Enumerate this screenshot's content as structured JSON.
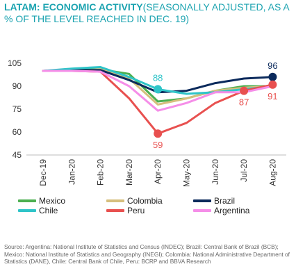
{
  "title": {
    "bold": "LATAM: ECONOMIC ACTIVITY",
    "normal": "(SEASONALLY ADJUSTED, AS A % OF THE LEVEL REACHED IN DEC. 19)"
  },
  "source": "Source: Argentina: National Institute of Statistics and Census (INDEC); Brazil: Central Bank of Brazil (BCB); Mexico: National Institute of Statistics and Geography (INEGI); Colombia: National Administrative Department of Statistics (DANE), Chile: Central Bank of Chile, Peru: BCRP and BBVA Research",
  "chart_data": {
    "type": "line",
    "categories": [
      "Dec-19",
      "Jan-20",
      "Feb-20",
      "Mar-20",
      "Apr-20",
      "May-20",
      "Jun-20",
      "Jul-20",
      "Aug-20"
    ],
    "ylim": [
      45,
      105
    ],
    "yticks": [
      45,
      60,
      75,
      90,
      105
    ],
    "grid": false,
    "legend": "bottom",
    "series": [
      {
        "name": "Mexico",
        "color": "#4caf50",
        "values": [
          100,
          101,
          101,
          98,
          80,
          82,
          87,
          90,
          90
        ]
      },
      {
        "name": "Colombia",
        "color": "#d6bf7e",
        "values": [
          100,
          100,
          101,
          95,
          78,
          82,
          87,
          89,
          90
        ]
      },
      {
        "name": "Brazil",
        "color": "#0b2a5c",
        "values": [
          100,
          100.5,
          100.5,
          94,
          86,
          87,
          92,
          95,
          96
        ]
      },
      {
        "name": "Chile",
        "color": "#2ec4c8",
        "values": [
          100,
          101.5,
          102.5,
          96,
          88,
          85,
          86,
          88,
          90
        ]
      },
      {
        "name": "Peru",
        "color": "#e8504f",
        "values": [
          100,
          100,
          99.5,
          82,
          59,
          66,
          79,
          87,
          91
        ]
      },
      {
        "name": "Argentina",
        "color": "#f58ee8",
        "values": [
          100,
          100,
          99.5,
          90,
          74,
          79,
          86,
          86,
          90
        ]
      }
    ],
    "annotations": [
      {
        "series": "Chile",
        "category": "Apr-20",
        "label": "88",
        "position": "above"
      },
      {
        "series": "Peru",
        "category": "Apr-20",
        "label": "59",
        "position": "below"
      },
      {
        "series": "Brazil",
        "category": "Aug-20",
        "label": "96",
        "position": "above"
      },
      {
        "series": "Peru",
        "category": "Jul-20",
        "label": "87",
        "position": "below"
      },
      {
        "series": "Peru",
        "category": "Aug-20",
        "label": "91",
        "position": "below"
      }
    ]
  }
}
